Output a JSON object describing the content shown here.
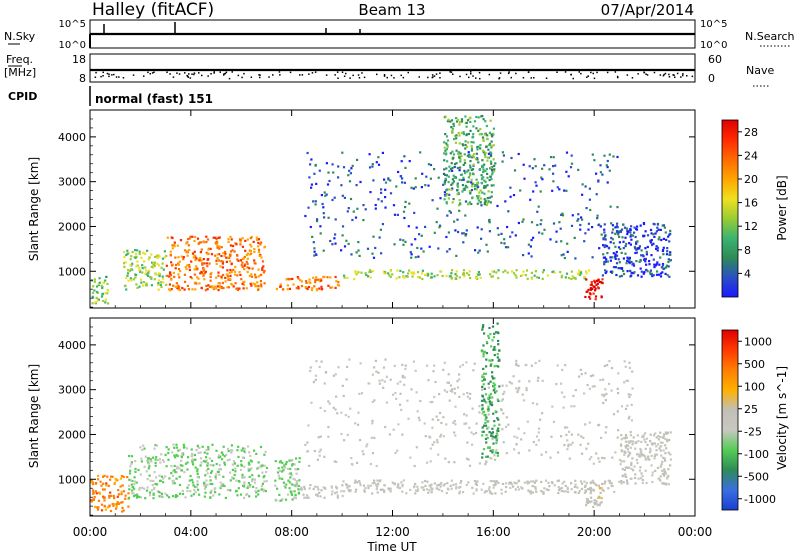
{
  "header": {
    "station": "Halley (fitACF)",
    "beam": "Beam 13",
    "date": "07/Apr/2014"
  },
  "info_panels": {
    "nsky_label": "N.Sky",
    "nsearch_label": "N.Search",
    "nsky_ticks": [
      "10^5",
      "10^0"
    ],
    "nsearch_ticks": [
      "10^5",
      "10^0"
    ],
    "freq_label_line1": "Freq.",
    "freq_label_line2": "[MHz]",
    "freq_ticks": [
      "18",
      "8"
    ],
    "nave_label": "Nave",
    "nave_ticks": [
      "60",
      "0"
    ],
    "cpid_label": "CPID",
    "cpid_value": "normal (fast) 151"
  },
  "colors": {
    "power_scale": [
      "#1a1aff",
      "#2a4fc4",
      "#2e8b57",
      "#3cb371",
      "#9acd32",
      "#f0e020",
      "#ffa500",
      "#ff6a00",
      "#ff2a00",
      "#e00000"
    ],
    "velocity_scale": [
      "#1a3fd0",
      "#3a6fe0",
      "#2e8b57",
      "#55cc55",
      "#c8c8c0",
      "#c0c0b8",
      "#ffb000",
      "#ff7f00",
      "#ff3a00",
      "#e00000"
    ]
  },
  "chart_data": [
    {
      "type": "heatmap",
      "panel": "power",
      "xlabel": "",
      "ylabel": "Slant Range [km]",
      "x_range_hours": [
        0,
        24
      ],
      "y_range_km": [
        180,
        4600
      ],
      "y_ticks": [
        "1000",
        "2000",
        "3000",
        "4000"
      ],
      "colorbar": {
        "label": "Power [dB]",
        "ticks": [
          "4",
          "8",
          "12",
          "16",
          "20",
          "24",
          "28"
        ],
        "range": [
          0,
          30
        ]
      },
      "features": [
        {
          "t0": 0.0,
          "t1": 0.7,
          "r0": 300,
          "r1": 900,
          "level": 12
        },
        {
          "t0": 1.3,
          "t1": 3.0,
          "r0": 600,
          "r1": 1500,
          "level": 14
        },
        {
          "t0": 3.0,
          "t1": 6.9,
          "r0": 600,
          "r1": 1800,
          "level": 22
        },
        {
          "t0": 7.3,
          "t1": 10.0,
          "r0": 600,
          "r1": 900,
          "level": 22
        },
        {
          "t0": 10.0,
          "t1": 19.8,
          "r0": 850,
          "r1": 1050,
          "level": 14
        },
        {
          "t0": 8.5,
          "t1": 21.0,
          "r0": 1300,
          "r1": 3700,
          "level": 5
        },
        {
          "t0": 14.0,
          "t1": 16.0,
          "r0": 2500,
          "r1": 4500,
          "level": 10
        },
        {
          "t0": 19.6,
          "t1": 20.3,
          "r0": 400,
          "r1": 900,
          "level": 28
        },
        {
          "t0": 20.3,
          "t1": 23.0,
          "r0": 900,
          "r1": 2100,
          "level": 4
        }
      ]
    },
    {
      "type": "heatmap",
      "panel": "velocity",
      "xlabel": "Time UT",
      "ylabel": "Slant Range [km]",
      "x_range_hours": [
        0,
        24
      ],
      "x_ticks": [
        "00:00",
        "04:00",
        "08:00",
        "12:00",
        "16:00",
        "20:00",
        "00:00"
      ],
      "y_range_km": [
        180,
        4600
      ],
      "y_ticks": [
        "1000",
        "2000",
        "3000",
        "4000"
      ],
      "colorbar": {
        "label": "Velocity [m s^-1]",
        "ticks": [
          "1000",
          "500",
          "100",
          "25",
          "-25",
          "-100",
          "-500",
          "-1000"
        ],
        "range": [
          -1200,
          1200
        ]
      },
      "features": [
        {
          "t0": 0.0,
          "t1": 1.5,
          "r0": 300,
          "r1": 1100,
          "level": 600
        },
        {
          "t0": 1.5,
          "t1": 7.0,
          "r0": 600,
          "r1": 1800,
          "level": -250
        },
        {
          "t0": 7.3,
          "t1": 8.3,
          "r0": 500,
          "r1": 1500,
          "level": -250
        },
        {
          "t0": 8.3,
          "t1": 10.0,
          "r0": 600,
          "r1": 900,
          "level": 0
        },
        {
          "t0": 10.0,
          "t1": 21.0,
          "r0": 700,
          "r1": 1000,
          "level": 0
        },
        {
          "t0": 8.5,
          "t1": 21.5,
          "r0": 1300,
          "r1": 3700,
          "level": 0
        },
        {
          "t0": 15.5,
          "t1": 16.2,
          "r0": 1500,
          "r1": 4500,
          "level": -500
        },
        {
          "t0": 19.6,
          "t1": 20.3,
          "r0": 400,
          "r1": 900,
          "level": 100
        },
        {
          "t0": 21.0,
          "t1": 23.0,
          "r0": 900,
          "r1": 2100,
          "level": 0
        }
      ]
    }
  ]
}
